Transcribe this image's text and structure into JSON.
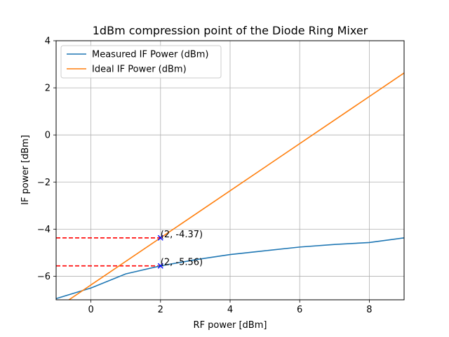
{
  "chart_data": {
    "type": "line",
    "title": "1dBm compression point of the Diode Ring Mixer",
    "xlabel": "RF power [dBm]",
    "ylabel": "IF power [dBm]",
    "xlim": [
      -1,
      9
    ],
    "ylim": [
      -7,
      4
    ],
    "xticks": [
      0,
      2,
      4,
      6,
      8
    ],
    "yticks": [
      -6,
      -4,
      -2,
      0,
      2,
      4
    ],
    "ytick_labels": [
      "−6",
      "−4",
      "−2",
      "0",
      "2",
      "4"
    ],
    "xtick_labels": [
      "0",
      "2",
      "4",
      "6",
      "8"
    ],
    "grid": true,
    "legend_position": "upper-left",
    "series": [
      {
        "name": "Measured IF Power (dBm)",
        "color": "#1f77b4",
        "x": [
          -1,
          0,
          1,
          2,
          3,
          4,
          5,
          6,
          7,
          8,
          9
        ],
        "y": [
          -6.95,
          -6.5,
          -5.9,
          -5.56,
          -5.3,
          -5.08,
          -4.92,
          -4.76,
          -4.65,
          -4.57,
          -4.37
        ]
      },
      {
        "name": "Ideal IF Power (dBm)",
        "color": "#ff7f0e",
        "x": [
          -1,
          9
        ],
        "y": [
          -7.37,
          2.63
        ]
      }
    ],
    "markers": [
      {
        "x": 2,
        "y": -4.37,
        "color": "#0000ff",
        "symbol": "x"
      },
      {
        "x": 2,
        "y": -5.56,
        "color": "#0000ff",
        "symbol": "x"
      }
    ],
    "reference_lines": [
      {
        "x_from": -1,
        "x_to": 2,
        "y": -4.37,
        "color": "#ff0000",
        "style": "dashed"
      },
      {
        "x_from": -1,
        "x_to": 2,
        "y": -5.56,
        "color": "#ff0000",
        "style": "dashed"
      }
    ],
    "annotations": [
      {
        "text": "(2, -4.37)",
        "x": 2,
        "y": -4.37
      },
      {
        "text": "(2, -5.56)",
        "x": 2,
        "y": -5.56
      }
    ]
  }
}
